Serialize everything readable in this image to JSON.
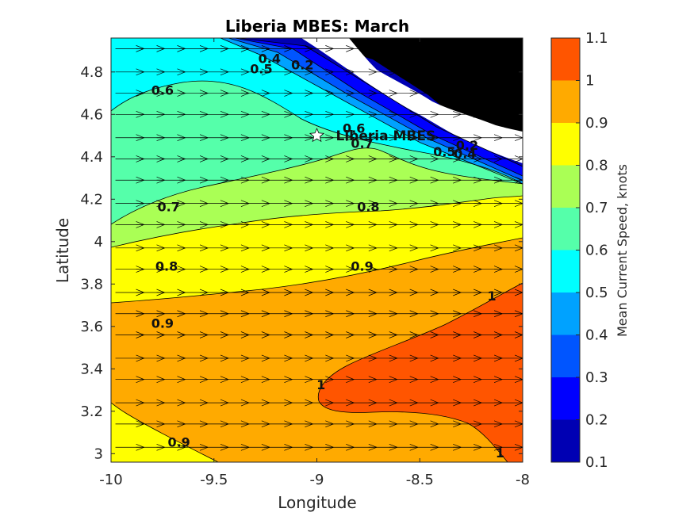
{
  "chart_data": {
    "type": "contour",
    "title": "Liberia MBES: March",
    "xlabel": "Longitude",
    "ylabel": "Latitude",
    "xlim": [
      -10,
      -8
    ],
    "ylim": [
      2.96,
      4.96
    ],
    "x_ticks": [
      "-10",
      "-9.5",
      "-9",
      "-8.5",
      "-8"
    ],
    "y_ticks": [
      "3",
      "3.2",
      "3.4",
      "3.6",
      "3.8",
      "4",
      "4.2",
      "4.4",
      "4.6",
      "4.8"
    ],
    "colorbar": {
      "label": "Mean Current Speed, knots",
      "range": [
        0.1,
        1.1
      ],
      "ticks": [
        "0.1",
        "0.2",
        "0.3",
        "0.4",
        "0.5",
        "0.6",
        "0.7",
        "0.8",
        "0.9",
        "1",
        "1.1"
      ],
      "levels": [
        {
          "from": 0.1,
          "to": 0.2,
          "color": "#0000b3"
        },
        {
          "from": 0.2,
          "to": 0.3,
          "color": "#0000ff"
        },
        {
          "from": 0.3,
          "to": 0.4,
          "color": "#0055ff"
        },
        {
          "from": 0.4,
          "to": 0.5,
          "color": "#00a2ff"
        },
        {
          "from": 0.5,
          "to": 0.6,
          "color": "#00ffff"
        },
        {
          "from": 0.6,
          "to": 0.7,
          "color": "#55ffaa"
        },
        {
          "from": 0.7,
          "to": 0.8,
          "color": "#aaff55"
        },
        {
          "from": 0.8,
          "to": 0.9,
          "color": "#ffff00"
        },
        {
          "from": 0.9,
          "to": 1.0,
          "color": "#ffaa00"
        },
        {
          "from": 1.0,
          "to": 1.1,
          "color": "#ff5500"
        }
      ]
    },
    "land_color": "#000000",
    "station": {
      "name": "Liberia MBES",
      "lon": -9.0,
      "lat": 4.5,
      "marker": "white-star"
    },
    "contour_labels": [
      {
        "text": "0.4",
        "lon": -9.23,
        "lat": 4.86
      },
      {
        "text": "0.2",
        "lon": -9.07,
        "lat": 4.83
      },
      {
        "text": "0.5",
        "lon": -9.27,
        "lat": 4.81
      },
      {
        "text": "0.6",
        "lon": -9.75,
        "lat": 4.71
      },
      {
        "text": "0.6",
        "lon": -8.82,
        "lat": 4.53
      },
      {
        "text": "0.7",
        "lon": -8.78,
        "lat": 4.46
      },
      {
        "text": "0.2",
        "lon": -8.27,
        "lat": 4.45
      },
      {
        "text": "0.5",
        "lon": -8.38,
        "lat": 4.42
      },
      {
        "text": "0.4",
        "lon": -8.28,
        "lat": 4.41
      },
      {
        "text": "0.7",
        "lon": -9.72,
        "lat": 4.16
      },
      {
        "text": "0.8",
        "lon": -8.75,
        "lat": 4.16
      },
      {
        "text": "0.8",
        "lon": -9.73,
        "lat": 3.88
      },
      {
        "text": "0.9",
        "lon": -8.78,
        "lat": 3.88
      },
      {
        "text": "1",
        "lon": -8.15,
        "lat": 3.74
      },
      {
        "text": "0.9",
        "lon": -9.75,
        "lat": 3.61
      },
      {
        "text": "1",
        "lon": -8.98,
        "lat": 3.32
      },
      {
        "text": "0.9",
        "lon": -9.67,
        "lat": 3.05
      },
      {
        "text": "1",
        "lon": -8.11,
        "lat": 3.0
      }
    ],
    "vector_field": {
      "quantity": "current direction",
      "direction": "eastward",
      "rows_lat": [
        4.91,
        4.8,
        4.7,
        4.6,
        4.49,
        4.39,
        4.29,
        4.18,
        4.08,
        3.97,
        3.87,
        3.76,
        3.66,
        3.56,
        3.45,
        3.35,
        3.24,
        3.14,
        3.03
      ],
      "cols_lon": [
        -9.94,
        -9.84,
        -9.74,
        -9.63,
        -9.53,
        -9.43,
        -9.33,
        -9.22,
        -9.12,
        -9.02,
        -8.92,
        -8.81,
        -8.71,
        -8.61,
        -8.51,
        -8.4,
        -8.3,
        -8.2,
        -8.1
      ]
    }
  }
}
